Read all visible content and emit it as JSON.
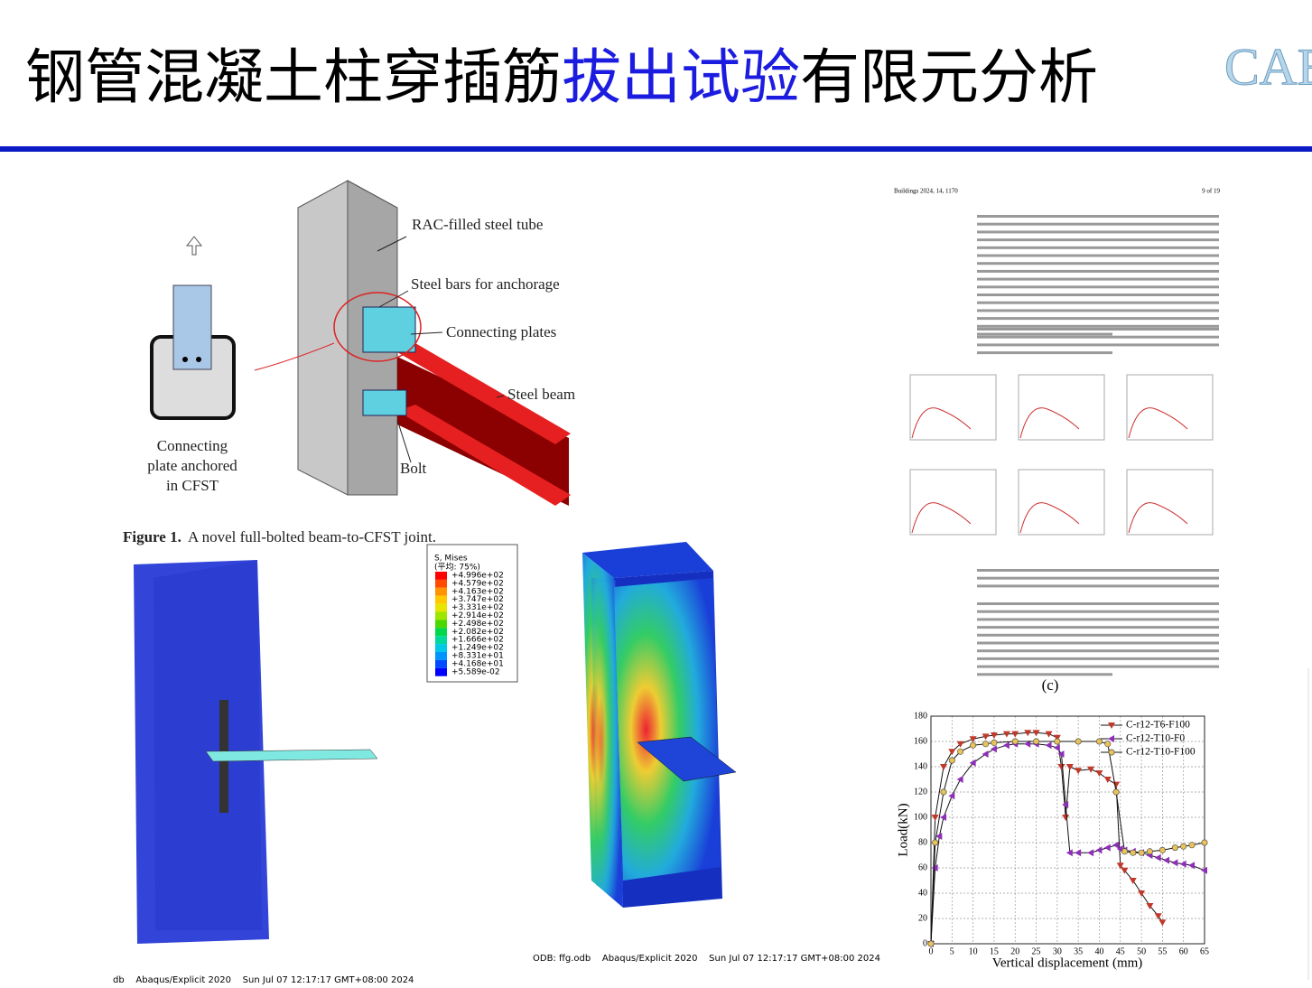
{
  "header": {
    "title_parts": [
      "钢管混凝土柱穿插筋",
      "拔出试验",
      "有限元分析"
    ],
    "logo": "CAE"
  },
  "figure1": {
    "labels": {
      "tube": "RAC-filled steel tube",
      "bars": "Steel bars for anchorage",
      "plates": "Connecting plates",
      "beam": "Steel beam",
      "bolt": "Bolt"
    },
    "inset_caption": [
      "Connecting",
      "plate anchored",
      "in CFST"
    ],
    "caption_label": "Figure 1.",
    "caption_text": "A novel full-bolted beam-to-CFST joint."
  },
  "fe_legend": {
    "title": "S, Mises",
    "subtitle": "(平均: 75%)",
    "levels": [
      "+4.996e+02",
      "+4.579e+02",
      "+4.163e+02",
      "+3.747e+02",
      "+3.331e+02",
      "+2.914e+02",
      "+2.498e+02",
      "+2.082e+02",
      "+1.666e+02",
      "+1.249e+02",
      "+8.331e+01",
      "+4.168e+01",
      "+5.589e-02"
    ]
  },
  "footers": [
    "ODB: ffg.odb    Abaqus/Explicit 2020    Sun Jul 07 12:17:17 GMT+08:00 2024",
    "db    Abaqus/Explicit 2020    Sun Jul 07 12:17:17 GMT+08:00 2024"
  ],
  "paper": {
    "journal": "Buildings 2024, 14, 1170",
    "page": "9 of 19",
    "panel": "(c)"
  },
  "chart": {
    "type": "line",
    "xlabel": "Vertical displacement (mm)",
    "ylabel": "Load(kN)",
    "xlim": [
      0,
      65
    ],
    "xticks": [
      0,
      5,
      10,
      15,
      20,
      25,
      30,
      35,
      40,
      45,
      50,
      55,
      60,
      65
    ],
    "ylim": [
      0,
      180
    ],
    "yticks": [
      0,
      20,
      40,
      60,
      80,
      100,
      120,
      140,
      160,
      180
    ],
    "grid": true,
    "series": [
      {
        "name": "C-r12-T6-F100",
        "color": "#c0392b",
        "marker": "tri-down",
        "x": [
          0,
          1,
          3,
          5,
          7,
          10,
          13,
          15,
          18,
          20,
          23,
          25,
          28,
          30,
          31,
          32,
          33,
          35,
          38,
          40,
          42,
          44,
          45,
          46,
          48,
          50,
          52,
          54,
          55
        ],
        "values": [
          0,
          100,
          140,
          152,
          158,
          162,
          164,
          165,
          166,
          166,
          167,
          167,
          166,
          163,
          140,
          100,
          140,
          137,
          138,
          135,
          130,
          126,
          62,
          58,
          50,
          40,
          30,
          22,
          17
        ]
      },
      {
        "name": "C-r12-T10-F0",
        "color": "#8e2fb8",
        "marker": "tri-left",
        "x": [
          0,
          1,
          2,
          3,
          5,
          7,
          10,
          13,
          15,
          18,
          20,
          23,
          25,
          28,
          30,
          31,
          32,
          33,
          35,
          38,
          40,
          42,
          44,
          45,
          46,
          48,
          50,
          52,
          54,
          56,
          58,
          60,
          62,
          65
        ],
        "values": [
          0,
          60,
          85,
          100,
          117,
          130,
          143,
          150,
          154,
          157,
          158,
          158,
          158,
          157,
          155,
          150,
          110,
          72,
          72,
          72,
          74,
          76,
          78,
          75,
          74,
          73,
          72,
          70,
          68,
          66,
          64,
          63,
          62,
          58
        ]
      },
      {
        "name": "C-r12-T10-F100",
        "color": "#e8c35a",
        "marker": "circle",
        "x": [
          0,
          1,
          3,
          5,
          7,
          10,
          13,
          15,
          20,
          25,
          30,
          35,
          40,
          42,
          44,
          46,
          48,
          50,
          52,
          55,
          58,
          60,
          62,
          65
        ],
        "values": [
          0,
          80,
          120,
          145,
          152,
          157,
          158,
          159,
          160,
          160,
          160,
          160,
          160,
          158,
          120,
          73,
          72,
          72,
          73,
          74,
          76,
          77,
          78,
          80
        ]
      }
    ]
  }
}
